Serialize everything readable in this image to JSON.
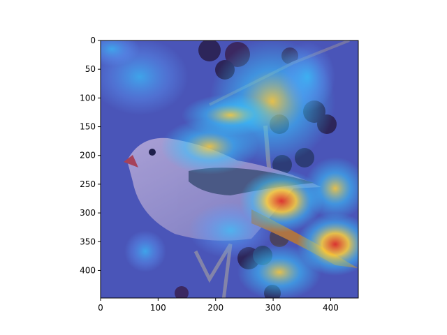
{
  "chart_data": {
    "type": "heatmap",
    "title": "",
    "xlabel": "",
    "ylabel": "",
    "subject": "bird perched on berry branch with attention heatmap overlay",
    "xlim": [
      0,
      448
    ],
    "ylim": [
      448,
      0
    ],
    "x_ticks": [
      0,
      100,
      200,
      300,
      400
    ],
    "y_ticks": [
      0,
      50,
      100,
      150,
      200,
      250,
      300,
      350,
      400
    ],
    "x_tick_labels": [
      "0",
      "100",
      "200",
      "300",
      "400"
    ],
    "y_tick_labels": [
      "0",
      "50",
      "100",
      "150",
      "200",
      "250",
      "300",
      "350",
      "400"
    ],
    "colormap": "jet",
    "colors": {
      "low": "#3a4cc0",
      "mid": "#39c6ff",
      "high": "#ffd23a",
      "peak": "#e0302a",
      "bird_body": "#8c8cc8",
      "wing": "#4b5a80",
      "berries": "#2a2050"
    },
    "hotspots": [
      {
        "x": 330,
        "y": 290,
        "value": 0.95
      },
      {
        "x": 420,
        "y": 355,
        "value": 0.9
      },
      {
        "x": 380,
        "y": 280,
        "value": 0.7
      },
      {
        "x": 240,
        "y": 200,
        "value": 0.6
      },
      {
        "x": 300,
        "y": 150,
        "value": 0.55
      },
      {
        "x": 70,
        "y": 80,
        "value": 0.45
      },
      {
        "x": 350,
        "y": 70,
        "value": 0.4
      },
      {
        "x": 80,
        "y": 360,
        "value": 0.4
      },
      {
        "x": 180,
        "y": 170,
        "value": 0.5
      }
    ]
  }
}
